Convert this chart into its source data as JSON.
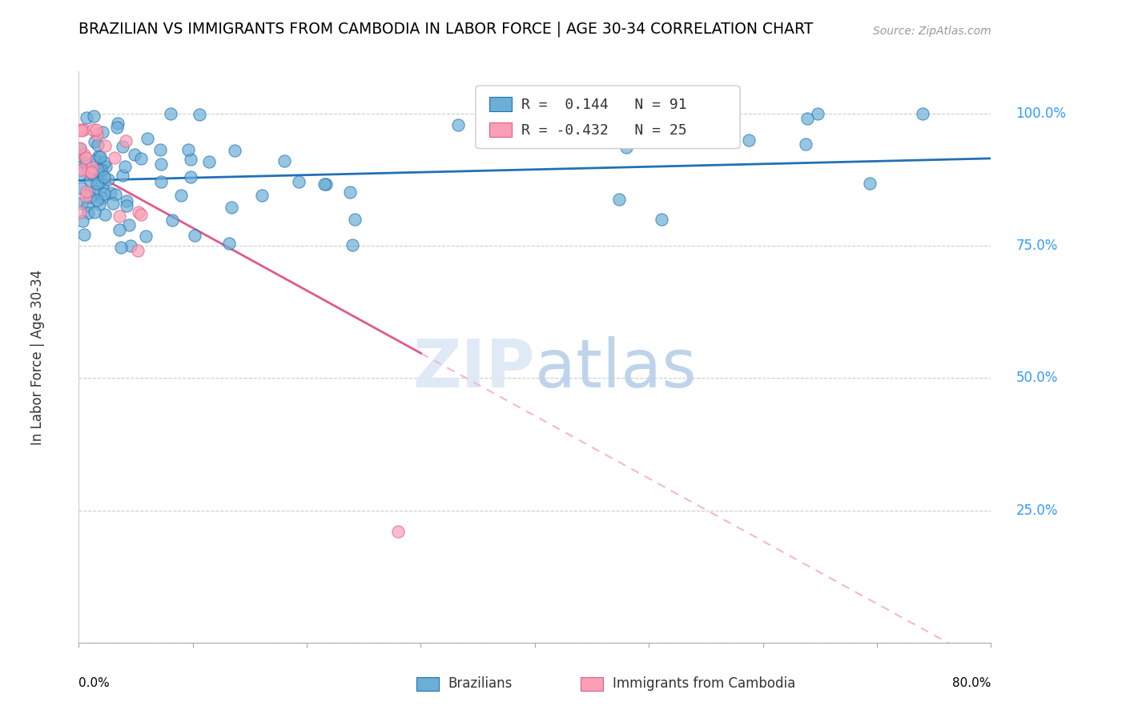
{
  "title": "BRAZILIAN VS IMMIGRANTS FROM CAMBODIA IN LABOR FORCE | AGE 30-34 CORRELATION CHART",
  "source": "Source: ZipAtlas.com",
  "ylabel": "In Labor Force | Age 30-34",
  "ytick_vals": [
    0.0,
    0.25,
    0.5,
    0.75,
    1.0
  ],
  "ytick_labels": [
    "",
    "25.0%",
    "50.0%",
    "75.0%",
    "100.0%"
  ],
  "legend_blue_r": "0.144",
  "legend_blue_n": "91",
  "legend_pink_r": "-0.432",
  "legend_pink_n": "25",
  "blue_color": "#6baed6",
  "pink_color": "#fa9fb5",
  "blue_line_color": "#2171b5",
  "pink_line_color": "#e05a8a",
  "pink_line_dashed_color": "#f4b8cc",
  "blue_n": 91,
  "pink_n": 25
}
